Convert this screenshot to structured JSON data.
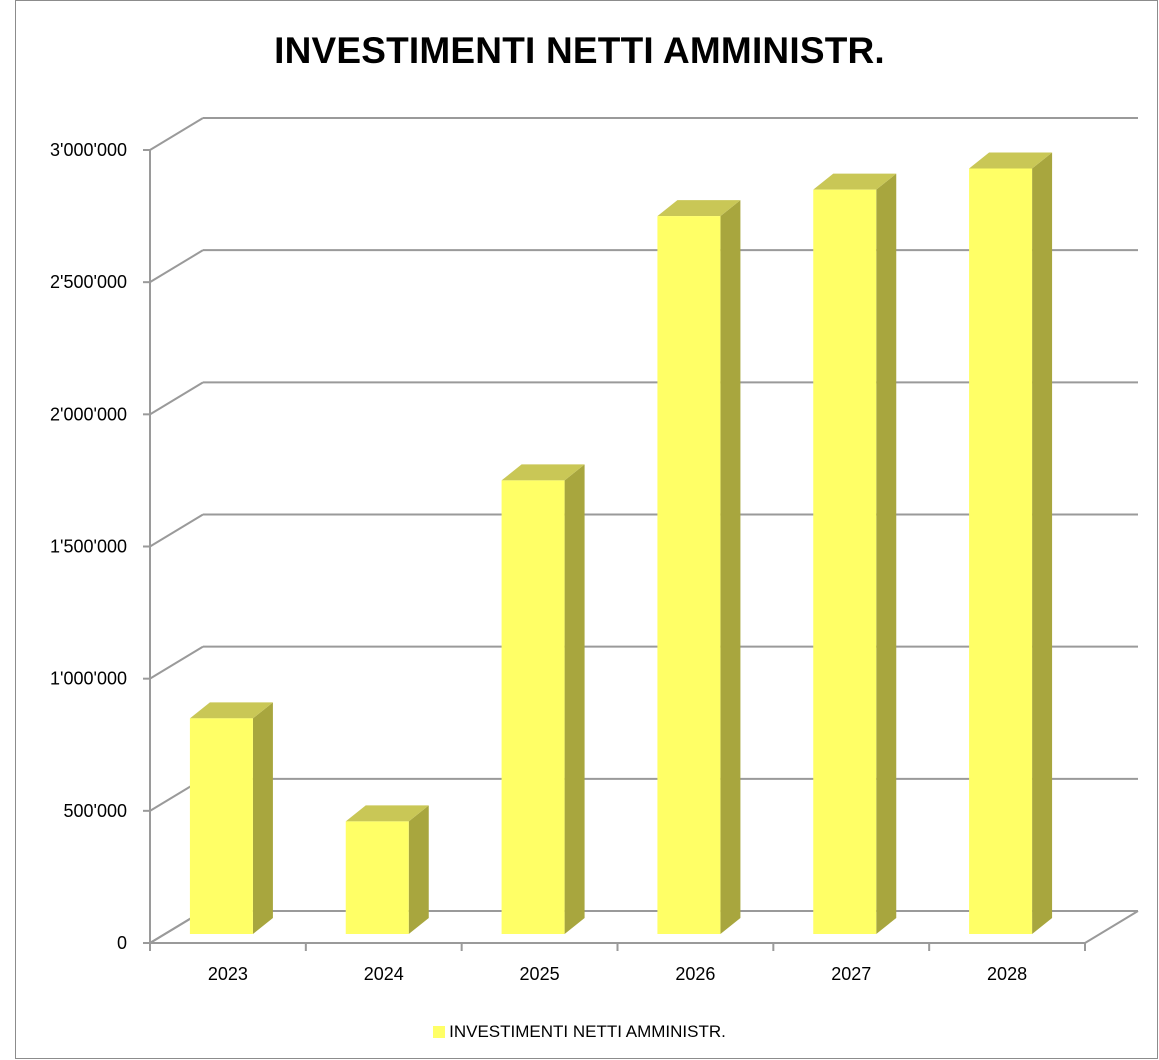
{
  "chart_data": {
    "type": "bar",
    "title": "INVESTIMENTI NETTI AMMINISTR.",
    "categories": [
      "2023",
      "2024",
      "2025",
      "2026",
      "2027",
      "2028"
    ],
    "series": [
      {
        "name": "INVESTIMENTI NETTI AMMINISTR.",
        "values": [
          850000,
          460000,
          1750000,
          2750000,
          2850000,
          2930000
        ]
      }
    ],
    "ylim": [
      0,
      3000000
    ],
    "yticks": [
      "0",
      "500'000",
      "1'000'000",
      "1'500'000",
      "2'000'000",
      "2'500'000",
      "3'000'000"
    ],
    "grid": true,
    "legend": "bottom",
    "colors": {
      "bar_front": "#ffff66",
      "bar_side": "#a8a63e",
      "bar_top": "#c9c756",
      "grid": "#9a9a9a"
    }
  }
}
